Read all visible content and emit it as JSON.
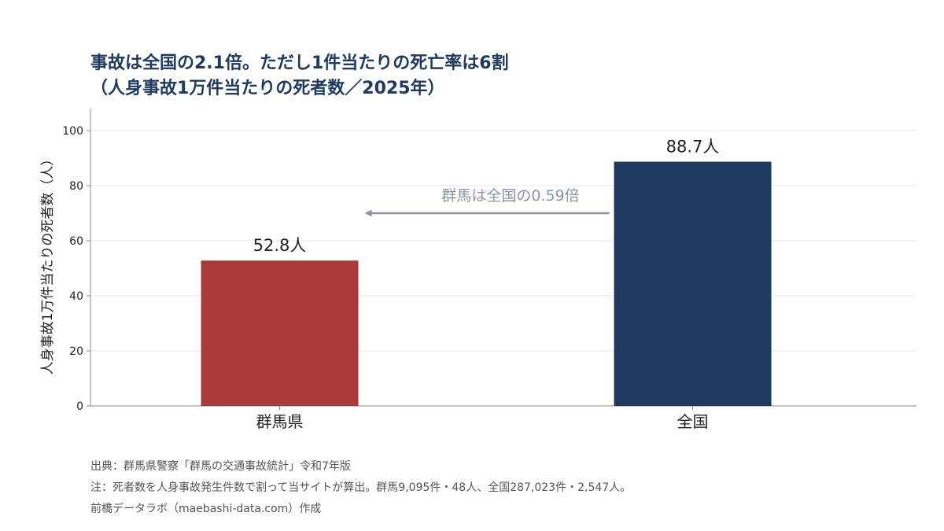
{
  "title_lines": [
    "事故は全国の2.1倍。ただし1件当たりの死亡率は6割",
    "（人身事故1万件当たりの死者数／2025年）"
  ],
  "chart_data": {
    "type": "bar",
    "categories": [
      "群馬県",
      "全国"
    ],
    "values": [
      52.8,
      88.7
    ],
    "value_labels": [
      "52.8人",
      "88.7人"
    ],
    "colors": [
      "#ad3a3a",
      "#1f3a5f"
    ],
    "ylabel": "人身事故1万件当たりの死者数（人）",
    "xlabel": "",
    "ylim": [
      0,
      108
    ],
    "yticks": [
      0,
      20,
      40,
      60,
      80,
      100
    ],
    "grid": true,
    "annotation": {
      "text": "群馬は全国の0.59倍",
      "arrow": "from 全国 toward 群馬県",
      "color": "#8a94a6"
    }
  },
  "footnotes": {
    "source": "出典：群馬県警察「群馬の交通事故統計」令和7年版",
    "method": "注：死者数を人身事故発生件数で割って当サイトが算出。群馬9,095件・48人、全国287,023件・2,547人。",
    "credit": "前橋データラボ（maebashi-data.com）作成"
  },
  "colors": {
    "title": "#1f3a5f",
    "axis": "#888888",
    "grid": "#e6e6e6",
    "text": "#222222",
    "note": "#555555"
  }
}
